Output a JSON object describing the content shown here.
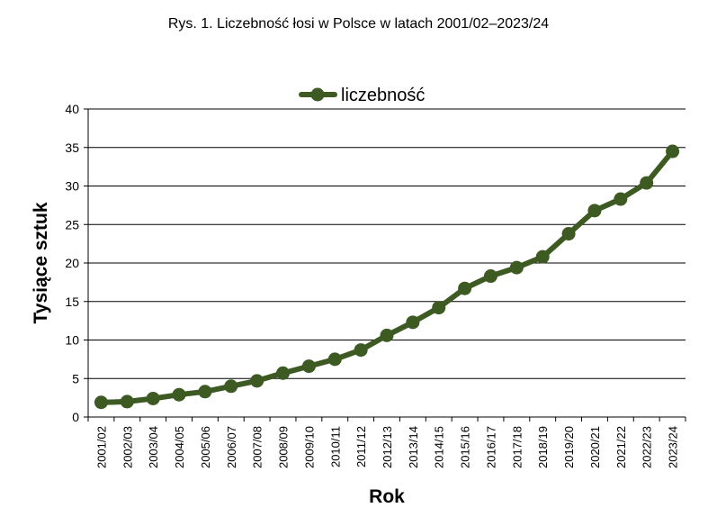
{
  "chart_data": {
    "type": "line",
    "title": "Rys. 1. Liczebność łosi w Polsce w latach 2001/02–2023/24",
    "xlabel": "Rok",
    "ylabel": "Tysiące sztuk",
    "ylim": [
      0,
      40
    ],
    "yticks": [
      0,
      5,
      10,
      15,
      20,
      25,
      30,
      35,
      40
    ],
    "grid": "horizontal",
    "legend_position": "top-center",
    "categories": [
      "2001/02",
      "2002/03",
      "2003/04",
      "2004/05",
      "2005/06",
      "2006/07",
      "2007/08",
      "2008/09",
      "2009/10",
      "2010/11",
      "2011/12",
      "2012/13",
      "2013/14",
      "2014/15",
      "2015/16",
      "2016/17",
      "2017/18",
      "2018/19",
      "2019/20",
      "2020/21",
      "2021/22",
      "2022/23",
      "2023/24"
    ],
    "series": [
      {
        "name": "liczebność",
        "color": "#3d5a23",
        "values": [
          1.9,
          2.0,
          2.4,
          2.9,
          3.3,
          4.0,
          4.7,
          5.7,
          6.6,
          7.5,
          8.7,
          10.6,
          12.3,
          14.2,
          16.7,
          18.3,
          19.4,
          20.8,
          23.8,
          26.8,
          28.3,
          30.4,
          34.5
        ]
      }
    ]
  }
}
